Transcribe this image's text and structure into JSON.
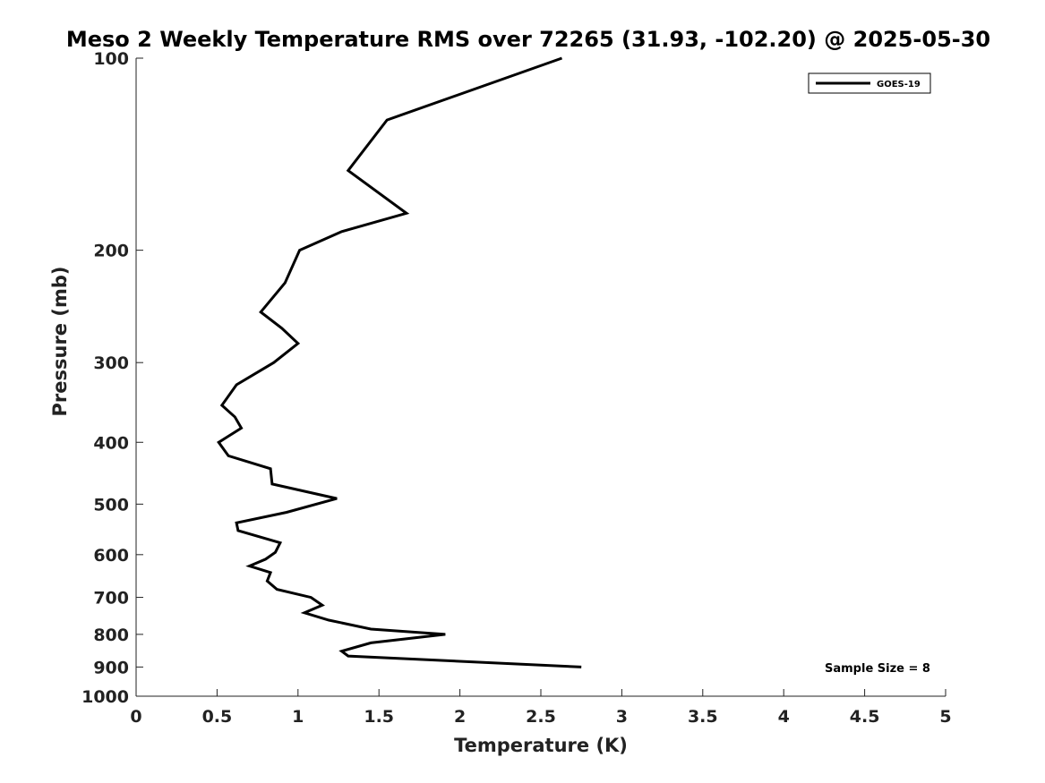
{
  "chart_data": {
    "type": "line",
    "title": "Meso 2 Weekly Temperature RMS over 72265 (31.93, -102.20) @ 2025-05-30",
    "xlabel": "Temperature (K)",
    "ylabel": "Pressure (mb)",
    "xlim": [
      0,
      5
    ],
    "ylim": [
      1000,
      100
    ],
    "y_scale": "log",
    "x_ticks": [
      0,
      0.5,
      1,
      1.5,
      2,
      2.5,
      3,
      3.5,
      4,
      4.5,
      5
    ],
    "x_tick_labels": [
      "0",
      "0.5",
      "1",
      "1.5",
      "2",
      "2.5",
      "3",
      "3.5",
      "4",
      "4.5",
      "5"
    ],
    "y_ticks": [
      100,
      200,
      300,
      400,
      500,
      600,
      700,
      800,
      900,
      1000
    ],
    "y_tick_labels": [
      "100",
      "200",
      "300",
      "400",
      "500",
      "600",
      "700",
      "800",
      "900",
      "1000"
    ],
    "grid": false,
    "legend_position": "top-right",
    "series": [
      {
        "name": "GOES-19",
        "color": "#000000",
        "points": [
          [
            2.63,
            100
          ],
          [
            1.55,
            125
          ],
          [
            1.31,
            150
          ],
          [
            1.67,
            175
          ],
          [
            1.27,
            187
          ],
          [
            1.01,
            200
          ],
          [
            0.92,
            225
          ],
          [
            0.77,
            250
          ],
          [
            0.9,
            265
          ],
          [
            1.0,
            280
          ],
          [
            0.85,
            300
          ],
          [
            0.62,
            325
          ],
          [
            0.53,
            350
          ],
          [
            0.61,
            365
          ],
          [
            0.65,
            380
          ],
          [
            0.51,
            400
          ],
          [
            0.57,
            420
          ],
          [
            0.83,
            440
          ],
          [
            0.84,
            465
          ],
          [
            1.24,
            490
          ],
          [
            0.93,
            515
          ],
          [
            0.62,
            535
          ],
          [
            0.63,
            550
          ],
          [
            0.89,
            575
          ],
          [
            0.86,
            595
          ],
          [
            0.8,
            610
          ],
          [
            0.7,
            625
          ],
          [
            0.83,
            640
          ],
          [
            0.81,
            660
          ],
          [
            0.87,
            680
          ],
          [
            1.08,
            700
          ],
          [
            1.15,
            720
          ],
          [
            1.04,
            740
          ],
          [
            1.19,
            760
          ],
          [
            1.45,
            785
          ],
          [
            1.91,
            800
          ],
          [
            1.45,
            825
          ],
          [
            1.27,
            850
          ],
          [
            1.31,
            865
          ],
          [
            2.75,
            900
          ]
        ]
      }
    ],
    "annotations": [
      {
        "text": "Sample Size = 8",
        "position": "bottom-right"
      }
    ]
  }
}
